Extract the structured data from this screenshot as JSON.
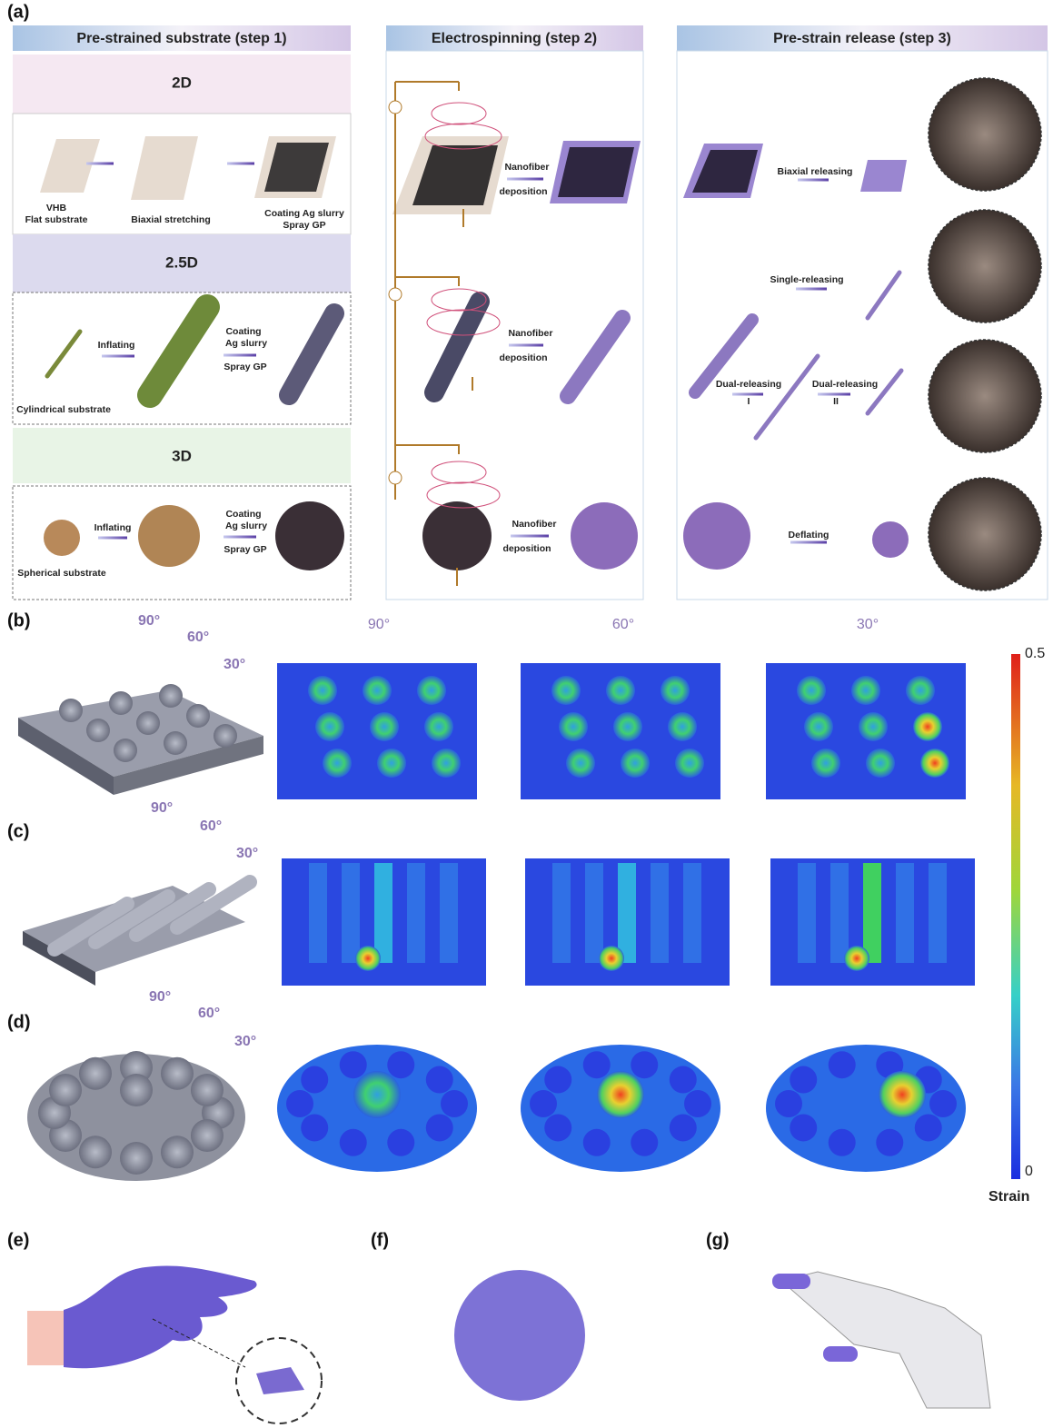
{
  "panel_labels": [
    "(a)",
    "(b)",
    "(c)",
    "(d)",
    "(e)",
    "(f)",
    "(g)"
  ],
  "step_headers": [
    "Pre-strained substrate (step 1)",
    "Electrospinning (step 2)",
    "Pre-strain release (step 3)"
  ],
  "step1": {
    "dims": [
      "2D",
      "2.5D",
      "3D"
    ],
    "row_2d": {
      "flat": [
        "VHB",
        "Flat substrate"
      ],
      "stretch": "Biaxial stretching",
      "coat": [
        "Coating Ag slurry",
        "Spray GP"
      ]
    },
    "row_25d": {
      "inflate": "Inflating",
      "coat": [
        "Coating",
        "Ag slurry",
        "Spray GP"
      ],
      "substrate": "Cylindrical substrate"
    },
    "row_3d": {
      "inflate": "Inflating",
      "coat": [
        "Coating",
        "Ag slurry",
        "Spray GP"
      ],
      "substrate": "Spherical substrate"
    }
  },
  "step2": {
    "deposition": [
      [
        "Nanofiber",
        "deposition"
      ],
      [
        "Nanofiber",
        "deposition"
      ],
      [
        "Nanofiber",
        "deposition"
      ]
    ]
  },
  "step3": {
    "biaxial": "Biaxial releasing",
    "single": "Single-releasing",
    "dual1": [
      "Dual-releasing",
      "I"
    ],
    "dual2": [
      "Dual-releasing",
      "II"
    ],
    "deflate": "Deflating"
  },
  "simulation": {
    "column_angles": [
      "90°",
      "60°",
      "30°"
    ],
    "row_angles": [
      [
        "90°",
        "60°",
        "30°"
      ],
      [
        "90°",
        "60°",
        "30°"
      ],
      [
        "90°",
        "60°",
        "30°"
      ]
    ],
    "colorbar": {
      "max": "0.5",
      "min": "0",
      "label": "Strain"
    }
  }
}
